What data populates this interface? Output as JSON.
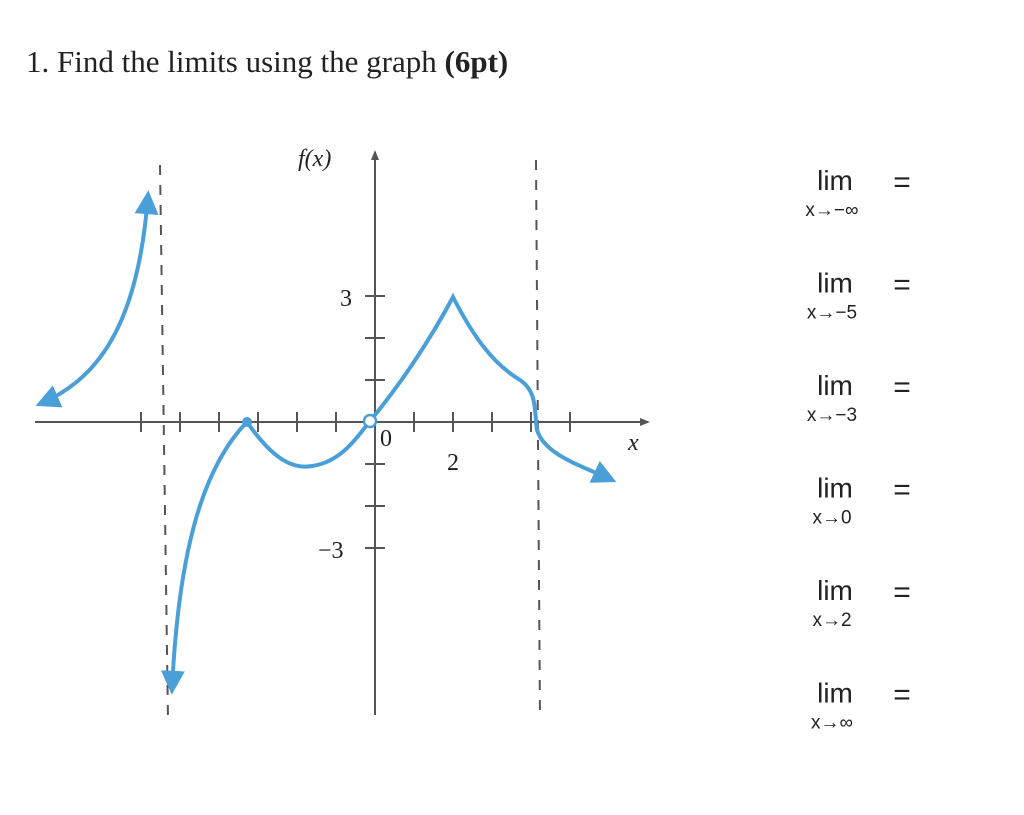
{
  "question": {
    "number": "1.",
    "text": "Find the limits using the graph",
    "points": "(6pt)"
  },
  "graph": {
    "y_axis_label": "f(x)",
    "x_axis_label": "x",
    "tick_labels": [
      "3",
      "−3",
      "0",
      "2"
    ]
  },
  "limits": [
    {
      "operator": "lim",
      "subscript": "x→−∞",
      "equals": "="
    },
    {
      "operator": "lim",
      "subscript": "x→−5",
      "equals": "="
    },
    {
      "operator": "lim",
      "subscript": "x→−3",
      "equals": "="
    },
    {
      "operator": "lim",
      "subscript": "x→0",
      "equals": "="
    },
    {
      "operator": "lim",
      "subscript": "x→2",
      "equals": "="
    },
    {
      "operator": "lim",
      "subscript": "x→∞",
      "equals": "="
    }
  ]
}
